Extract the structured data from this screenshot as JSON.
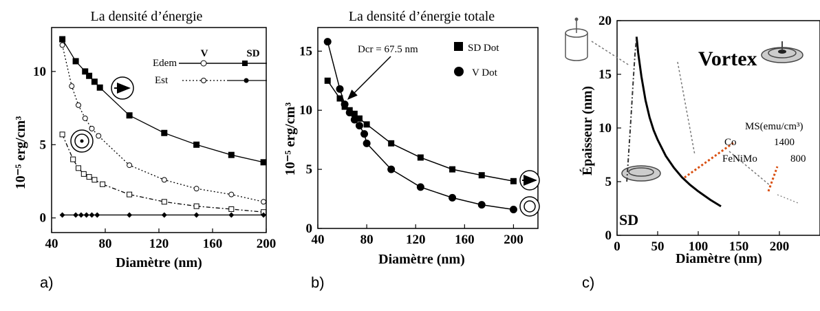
{
  "panel_labels": [
    "a)",
    "b)",
    "c)"
  ],
  "chart_data": [
    {
      "type": "line",
      "title": "La densité d’énergie",
      "xlabel": "Diamètre (nm)",
      "ylabel": "10⁻⁵ erg/cm³",
      "xlim": [
        40,
        200
      ],
      "ylim": [
        -1,
        13
      ],
      "xticks": [
        "40",
        "80",
        "120",
        "160",
        "200"
      ],
      "yticks": [
        "0",
        "5",
        "10"
      ],
      "legend": {
        "col_v": "V",
        "col_sd": "SD",
        "row_dem": "Edem",
        "row_st": "Est"
      },
      "series": [
        {
          "name": "Edem SD",
          "marker": "filled-square",
          "style": "solid",
          "x": [
            48,
            58,
            65,
            68,
            72,
            76,
            98,
            124,
            148,
            174,
            198
          ],
          "y": [
            12.2,
            10.7,
            10.0,
            9.7,
            9.3,
            8.9,
            7.0,
            5.8,
            5.0,
            4.3,
            3.8
          ]
        },
        {
          "name": "Edem V",
          "marker": "open-circle",
          "style": "dotted",
          "x": [
            48,
            55,
            60,
            65,
            70,
            75,
            98,
            124,
            148,
            174,
            198
          ],
          "y": [
            11.8,
            9.0,
            7.7,
            6.8,
            6.1,
            5.6,
            3.6,
            2.6,
            2.0,
            1.6,
            1.1
          ]
        },
        {
          "name": "Est V",
          "marker": "open-square",
          "style": "dash-dot",
          "x": [
            48,
            56,
            60,
            64,
            68,
            72,
            78,
            98,
            124,
            148,
            174,
            198
          ],
          "y": [
            5.7,
            4.0,
            3.4,
            3.0,
            2.8,
            2.6,
            2.3,
            1.6,
            1.1,
            0.8,
            0.6,
            0.4
          ]
        },
        {
          "name": "Est SD",
          "marker": "filled-diamond",
          "style": "solid",
          "x": [
            48,
            58,
            62,
            66,
            70,
            74,
            98,
            124,
            148,
            174,
            198
          ],
          "y": [
            0.2,
            0.2,
            0.2,
            0.2,
            0.2,
            0.2,
            0.2,
            0.2,
            0.2,
            0.2,
            0.2
          ]
        }
      ]
    },
    {
      "type": "line",
      "title": "La densité d’énergie totale",
      "xlabel": "Diamètre (nm)",
      "ylabel": "10⁻⁵ erg/cm³",
      "xlim": [
        40,
        220
      ],
      "ylim": [
        0,
        17
      ],
      "xticks": [
        "40",
        "80",
        "120",
        "160",
        "200"
      ],
      "yticks": [
        "0",
        "5",
        "10",
        "15"
      ],
      "annotation": "Dcr = 67.5 nm",
      "series": [
        {
          "name": "SD Dot",
          "marker": "filled-square",
          "x": [
            48,
            58,
            62,
            66,
            70,
            74,
            80,
            100,
            124,
            150,
            174,
            200
          ],
          "y": [
            12.5,
            11.0,
            10.3,
            10.0,
            9.7,
            9.3,
            8.8,
            7.2,
            6.0,
            5.0,
            4.5,
            4.0
          ]
        },
        {
          "name": "V Dot",
          "marker": "filled-circle",
          "x": [
            48,
            58,
            62,
            66,
            70,
            74,
            78,
            80,
            100,
            124,
            150,
            174,
            200
          ],
          "y": [
            15.8,
            11.8,
            10.5,
            9.8,
            9.2,
            8.7,
            8.0,
            7.2,
            5.0,
            3.5,
            2.6,
            2.0,
            1.6
          ]
        }
      ]
    },
    {
      "type": "line",
      "title": "",
      "xlabel": "Diamètre (nm)",
      "ylabel": "Épaisseur (nm)",
      "xlim": [
        0,
        250
      ],
      "ylim": [
        0,
        20
      ],
      "xticks": [
        "0",
        "50",
        "100",
        "150",
        "200"
      ],
      "yticks": [
        "0",
        "5",
        "10",
        "15",
        "20"
      ],
      "region_labels": {
        "sd": "SD",
        "vortex": "Vortex"
      },
      "ms_table": {
        "header": "MS(emu/cm³)",
        "rows": [
          [
            "Co",
            "1400"
          ],
          [
            "FeNiMo",
            "800"
          ]
        ]
      },
      "series": [
        {
          "name": "boundary",
          "x": [
            24,
            26,
            30,
            35,
            40,
            45,
            50,
            60,
            70,
            80,
            90,
            100,
            115,
            128
          ],
          "y": [
            18.5,
            17.0,
            14.8,
            12.6,
            11.0,
            9.8,
            8.9,
            7.4,
            6.3,
            5.4,
            4.7,
            4.1,
            3.3,
            2.7
          ]
        },
        {
          "name": "dash-dot",
          "x": [
            12,
            14,
            16,
            18,
            20,
            22,
            24
          ],
          "y": [
            5.0,
            7.3,
            9.6,
            12.0,
            14.5,
            16.8,
            18.5
          ]
        }
      ]
    }
  ]
}
